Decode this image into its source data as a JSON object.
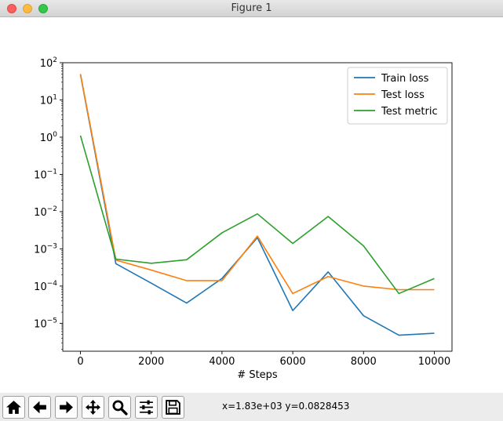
{
  "window": {
    "title": "Figure 1"
  },
  "toolbar": {
    "buttons": [
      {
        "name": "home-button",
        "icon": "home-icon"
      },
      {
        "name": "back-button",
        "icon": "arrow-left-icon"
      },
      {
        "name": "forward-button",
        "icon": "arrow-right-icon"
      },
      {
        "name": "pan-button",
        "icon": "move-icon"
      },
      {
        "name": "zoom-button",
        "icon": "magnifier-icon"
      },
      {
        "name": "configure-subplots-button",
        "icon": "sliders-icon"
      },
      {
        "name": "save-button",
        "icon": "floppy-disk-icon"
      }
    ],
    "coords": "x=1.83e+03 y=0.0828453"
  },
  "chart_data": {
    "type": "line",
    "xlabel": "# Steps",
    "ylabel": "",
    "yscale": "log",
    "xlim": [
      -500,
      10500
    ],
    "ylim_exp": [
      -5.75,
      2.0
    ],
    "x": [
      0,
      1000,
      2000,
      3000,
      4000,
      5000,
      6000,
      7000,
      8000,
      9000,
      10000
    ],
    "xticks": [
      "0",
      "2000",
      "4000",
      "6000",
      "8000",
      "10000"
    ],
    "xtick_values": [
      0,
      2000,
      4000,
      6000,
      8000,
      10000
    ],
    "yticks": [
      {
        "base": "10",
        "exp": "2",
        "value": 100
      },
      {
        "base": "10",
        "exp": "1",
        "value": 10
      },
      {
        "base": "10",
        "exp": "0",
        "value": 1
      },
      {
        "base": "10",
        "exp": "−1",
        "value": 0.1
      },
      {
        "base": "10",
        "exp": "−2",
        "value": 0.01
      },
      {
        "base": "10",
        "exp": "−3",
        "value": 0.001
      },
      {
        "base": "10",
        "exp": "−4",
        "value": 0.0001
      },
      {
        "base": "10",
        "exp": "−5",
        "value": 1e-05
      }
    ],
    "legend_position": "upper right",
    "grid": false,
    "series": [
      {
        "name": "Train loss",
        "color": "#1f77b4",
        "values": [
          48,
          0.0004,
          0.00012,
          3.5e-05,
          0.00016,
          0.002,
          2.2e-05,
          0.00024,
          1.6e-05,
          4.8e-06,
          5.4e-06
        ]
      },
      {
        "name": "Test loss",
        "color": "#ff7f0e",
        "values": [
          50,
          0.0005,
          0.00027,
          0.00014,
          0.00014,
          0.0022,
          6.3e-05,
          0.00018,
          0.0001,
          8e-05,
          8e-05
        ]
      },
      {
        "name": "Test metric",
        "color": "#2ca02c",
        "values": [
          1.1,
          0.00053,
          0.00041,
          0.00051,
          0.0027,
          0.0087,
          0.0014,
          0.0074,
          0.0012,
          6.3e-05,
          0.00016
        ]
      }
    ]
  }
}
